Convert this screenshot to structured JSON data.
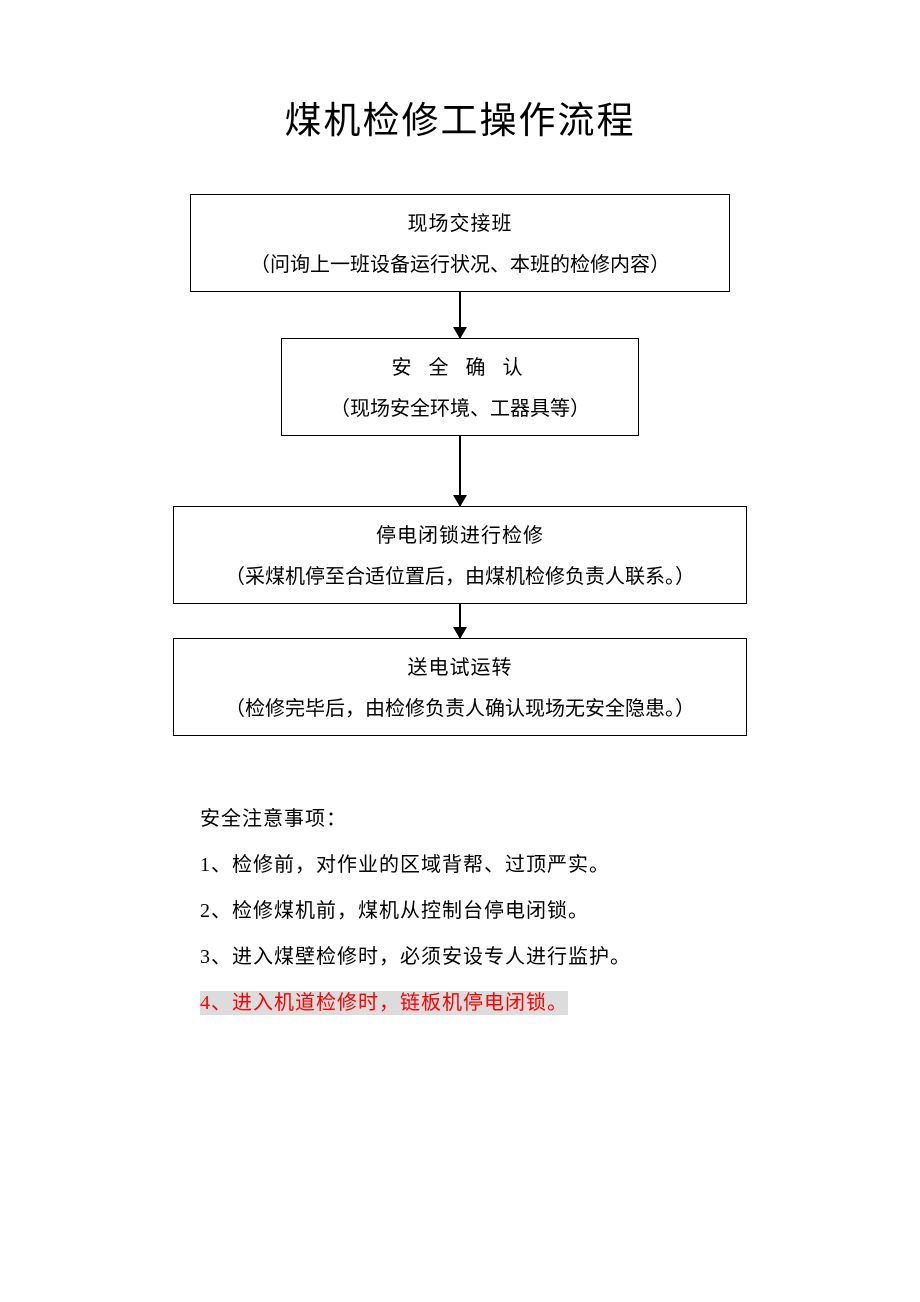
{
  "title": "煤机检修工操作流程",
  "flow": {
    "steps": [
      {
        "title": "现场交接班",
        "subtitle": "（问询上一班设备运行状况、本班的检修内容）",
        "spaced": false
      },
      {
        "title": "安 全 确 认",
        "subtitle": "（现场安全环境、工器具等）",
        "spaced": true
      },
      {
        "title": "停电闭锁进行检修",
        "subtitle": "（采煤机停至合适位置后，由煤机检修负责人联系。）",
        "spaced": false
      },
      {
        "title": "送电试运转",
        "subtitle": "（检修完毕后，由检修负责人确认现场无安全隐患。）",
        "spaced": false
      }
    ],
    "box_border_color": "#000000",
    "arrow_color": "#000000",
    "background_color": "#ffffff"
  },
  "notes": {
    "header": "安全注意事项：",
    "items": [
      {
        "text": "1、检修前，对作业的区域背帮、过顶严实。",
        "highlight": false
      },
      {
        "text": "2、检修煤机前，煤机从控制台停电闭锁。",
        "highlight": false
      },
      {
        "text": "3、进入煤壁检修时，必须安设专人进行监护。",
        "highlight": false
      },
      {
        "text": "4、进入机道检修时，链板机停电闭锁。",
        "highlight": true
      }
    ],
    "highlight_color": "#ff0000",
    "highlight_bg": "#dcdcdc"
  },
  "style": {
    "title_fontsize": 37,
    "body_fontsize": 20,
    "font_family": "SimSun",
    "text_color": "#000000"
  }
}
